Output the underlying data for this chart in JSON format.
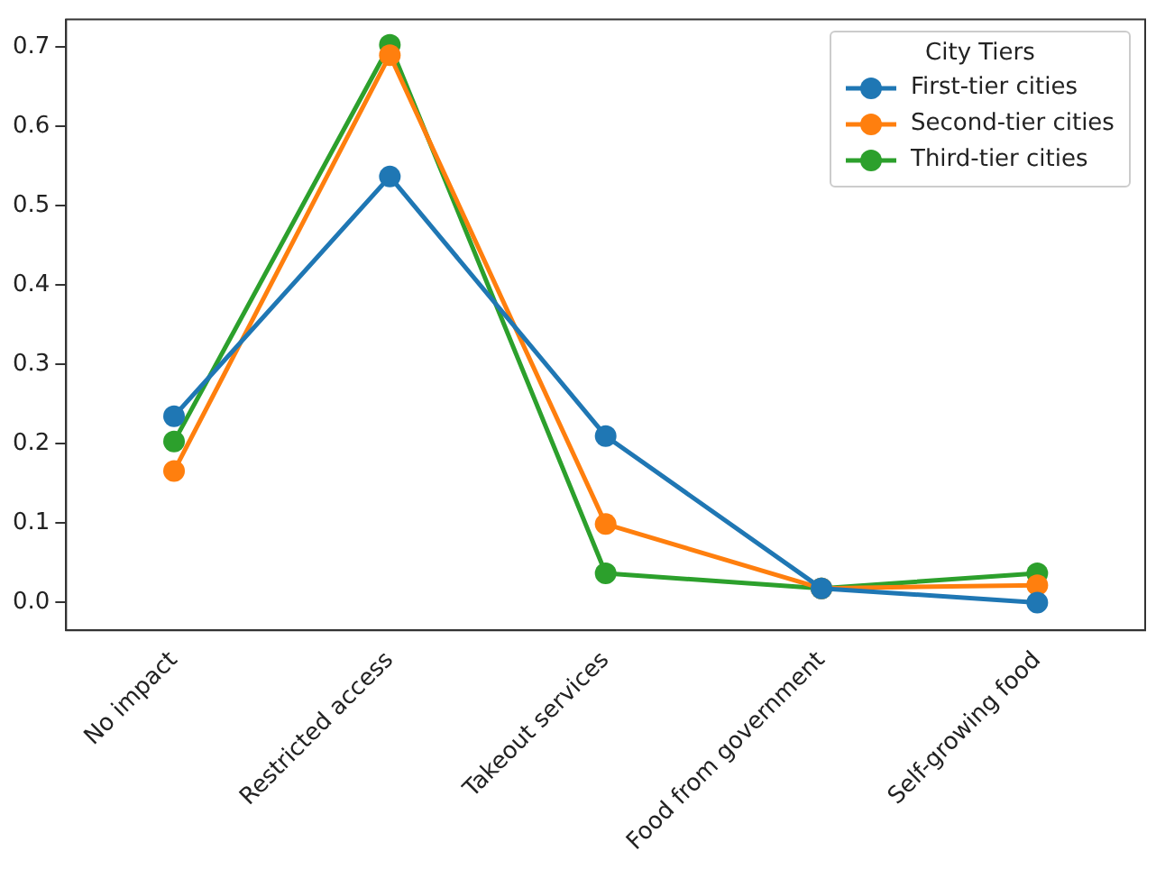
{
  "chart_data": {
    "type": "line",
    "categories": [
      "No impact",
      "Restricted access",
      "Takeout services",
      "Food from government",
      "Self-growing food"
    ],
    "series": [
      {
        "name": "First-tier cities",
        "color": "#1f77b4",
        "values": [
          0.235,
          0.537,
          0.21,
          0.018,
          0.0
        ]
      },
      {
        "name": "Second-tier cities",
        "color": "#ff7f0e",
        "values": [
          0.166,
          0.69,
          0.099,
          0.018,
          0.022
        ]
      },
      {
        "name": "Third-tier cities",
        "color": "#2ca02c",
        "values": [
          0.203,
          0.703,
          0.037,
          0.018,
          0.037
        ]
      }
    ],
    "legend_title": "City Tiers",
    "legend": "top right",
    "marker": "circle",
    "line_style": "solid",
    "grid": false,
    "ylim": [
      -0.035,
      0.735
    ],
    "yticks": [
      {
        "value": 0,
        "label": "0.0"
      },
      0.1,
      0.2,
      0.3,
      0.4,
      0.5,
      0.6,
      0.7
    ]
  }
}
